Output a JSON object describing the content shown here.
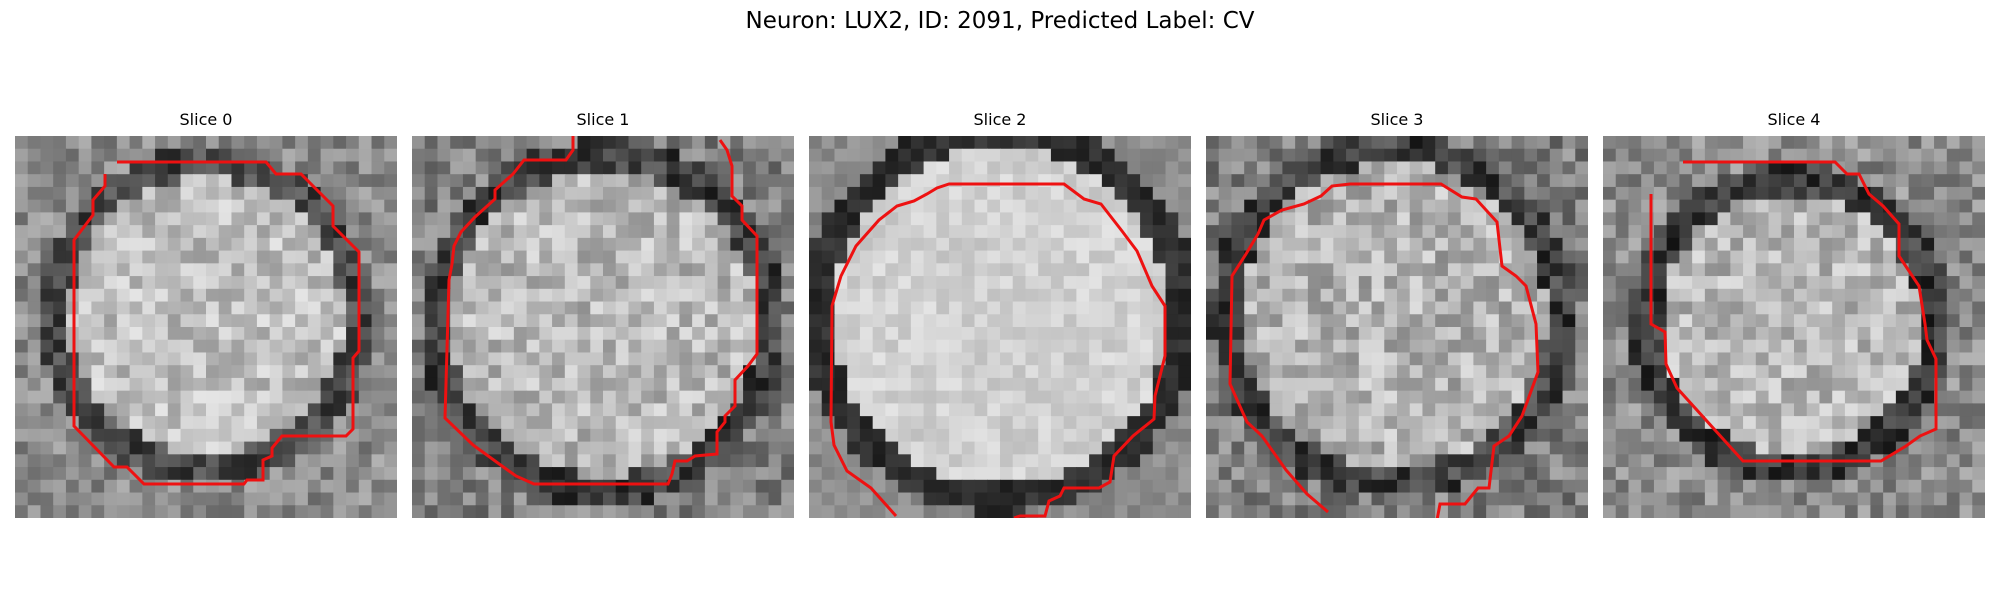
{
  "figure": {
    "title": "Neuron: LUX2, ID: 2091, Predicted Label: CV"
  },
  "panels": [
    {
      "title": "Slice 0"
    },
    {
      "title": "Slice 1"
    },
    {
      "title": "Slice 2"
    },
    {
      "title": "Slice 3"
    },
    {
      "title": "Slice 4"
    }
  ],
  "colors": {
    "contour": "#ee1111"
  }
}
